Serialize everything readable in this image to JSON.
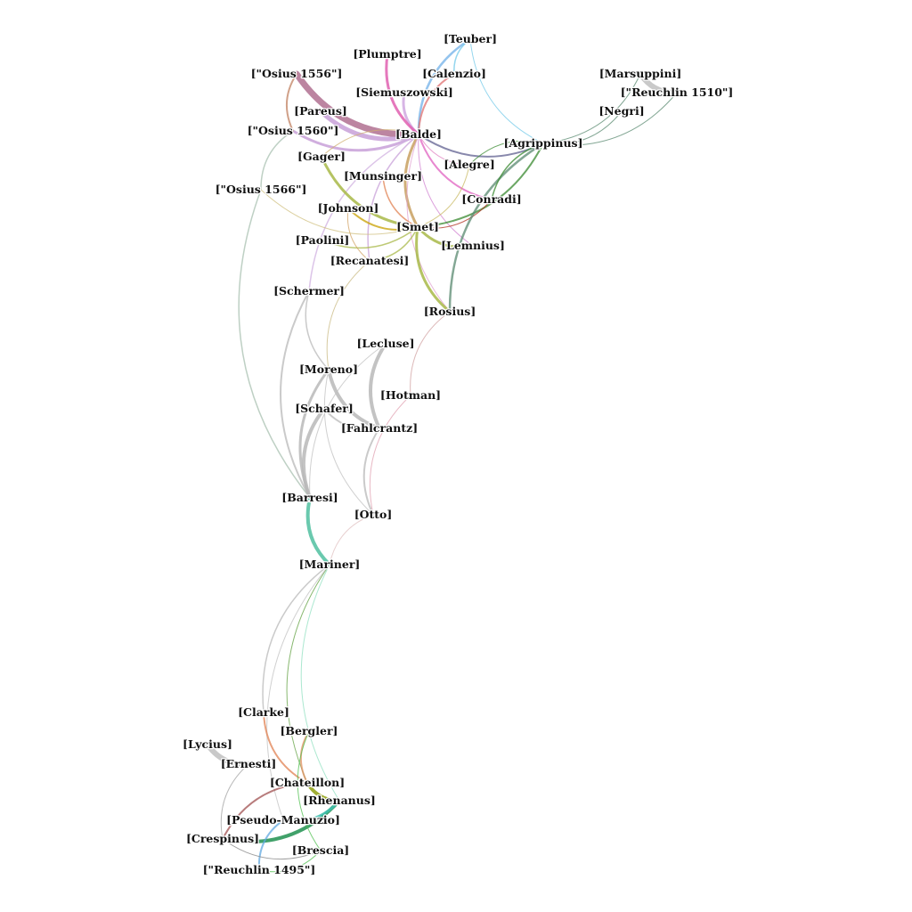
{
  "graph": {
    "nodes": [
      {
        "id": "teuber",
        "label": "[Teuber]"
      },
      {
        "id": "plumptre",
        "label": "[Plumptre]"
      },
      {
        "id": "calenzio",
        "label": "[Calenzio]"
      },
      {
        "id": "osius1556",
        "label": "[\"Osius 1556\"]"
      },
      {
        "id": "siemuszowski",
        "label": "[Siemuszowski]"
      },
      {
        "id": "marsuppini",
        "label": "[Marsuppini]"
      },
      {
        "id": "reuchlin1510",
        "label": "[\"Reuchlin 1510\"]"
      },
      {
        "id": "pareus",
        "label": "[Pareus]"
      },
      {
        "id": "negri",
        "label": "[Negri]"
      },
      {
        "id": "osius1560",
        "label": "[\"Osius 1560\"]"
      },
      {
        "id": "balde",
        "label": "[Balde]"
      },
      {
        "id": "agrippinus",
        "label": "[Agrippinus]"
      },
      {
        "id": "gager",
        "label": "[Gager]"
      },
      {
        "id": "alegre",
        "label": "[Alegre]"
      },
      {
        "id": "munsinger",
        "label": "[Munsinger]"
      },
      {
        "id": "osius1566",
        "label": "[\"Osius 1566\"]"
      },
      {
        "id": "conradi",
        "label": "[Conradi]"
      },
      {
        "id": "johnson",
        "label": "[Johnson]"
      },
      {
        "id": "smet",
        "label": "[Smet]"
      },
      {
        "id": "paolini",
        "label": "[Paolini]"
      },
      {
        "id": "lemnius",
        "label": "[Lemnius]"
      },
      {
        "id": "recanatesi",
        "label": "[Recanatesi]"
      },
      {
        "id": "schermer",
        "label": "[Schermer]"
      },
      {
        "id": "rosius",
        "label": "[Rosius]"
      },
      {
        "id": "lecluse",
        "label": "[Lecluse]"
      },
      {
        "id": "moreno",
        "label": "[Moreno]"
      },
      {
        "id": "hotman",
        "label": "[Hotman]"
      },
      {
        "id": "schafer",
        "label": "[Schafer]"
      },
      {
        "id": "fahlcrantz",
        "label": "[Fahlcrantz]"
      },
      {
        "id": "barresi",
        "label": "[Barresi]"
      },
      {
        "id": "otto",
        "label": "[Otto]"
      },
      {
        "id": "mariner",
        "label": "[Mariner]"
      },
      {
        "id": "clarke",
        "label": "[Clarke]"
      },
      {
        "id": "bergler",
        "label": "[Bergler]"
      },
      {
        "id": "lycius",
        "label": "[Lycius]"
      },
      {
        "id": "ernesti",
        "label": "[Ernesti]"
      },
      {
        "id": "chateillon",
        "label": "[Chateillon]"
      },
      {
        "id": "rhenanus",
        "label": "[Rhenanus]"
      },
      {
        "id": "pseudomanuzio",
        "label": "[Pseudo-Manuzio]"
      },
      {
        "id": "crespinus",
        "label": "[Crespinus]"
      },
      {
        "id": "brescia",
        "label": "[Brescia]"
      },
      {
        "id": "reuchlin1495",
        "label": "[\"Reuchlin 1495\"]"
      }
    ],
    "edges": [
      {
        "s": "osius1556",
        "t": "balde",
        "color": "#b07090",
        "w": 7
      },
      {
        "s": "pareus",
        "t": "balde",
        "color": "#c8a0d8",
        "w": 5
      },
      {
        "s": "osius1560",
        "t": "balde",
        "color": "#c8a0d8",
        "w": 3
      },
      {
        "s": "siemuszowski",
        "t": "balde",
        "color": "#d0a8e0",
        "w": 3
      },
      {
        "s": "plumptre",
        "t": "balde",
        "color": "#e060b0",
        "w": 3
      },
      {
        "s": "teuber",
        "t": "balde",
        "color": "#70b0e8",
        "w": 2.5
      },
      {
        "s": "teuber",
        "t": "calenzio",
        "color": "#70c8e8",
        "w": 1.5
      },
      {
        "s": "teuber",
        "t": "agrippinus",
        "color": "#70c8e8",
        "w": 1
      },
      {
        "s": "calenzio",
        "t": "balde",
        "color": "#e07070",
        "w": 2
      },
      {
        "s": "balde",
        "t": "smet",
        "color": "#c8a060",
        "w": 3
      },
      {
        "s": "balde",
        "t": "agrippinus",
        "color": "#606090",
        "w": 2
      },
      {
        "s": "balde",
        "t": "conradi",
        "color": "#e060c0",
        "w": 2
      },
      {
        "s": "balde",
        "t": "alegre",
        "color": "#e080c0",
        "w": 1
      },
      {
        "s": "balde",
        "t": "lemnius",
        "color": "#d080d0",
        "w": 1
      },
      {
        "s": "balde",
        "t": "recanatesi",
        "color": "#c8a0d8",
        "w": 1.5
      },
      {
        "s": "balde",
        "t": "gager",
        "color": "#d0b070",
        "w": 1
      },
      {
        "s": "balde",
        "t": "schermer",
        "color": "#d0b0e0",
        "w": 1.5
      },
      {
        "s": "balde",
        "t": "rosius",
        "color": "#e0a0d0",
        "w": 1
      },
      {
        "s": "gager",
        "t": "smet",
        "color": "#a8b848",
        "w": 3
      },
      {
        "s": "smet",
        "t": "lemnius",
        "color": "#a8b848",
        "w": 3
      },
      {
        "s": "smet",
        "t": "rosius",
        "color": "#a8b848",
        "w": 3
      },
      {
        "s": "smet",
        "t": "agrippinus",
        "color": "#3a8a30",
        "w": 2
      },
      {
        "s": "johnson",
        "t": "smet",
        "color": "#c8a000",
        "w": 2
      },
      {
        "s": "munsinger",
        "t": "smet",
        "color": "#e08050",
        "w": 1.5
      },
      {
        "s": "paolini",
        "t": "smet",
        "color": "#a8b848",
        "w": 1.5
      },
      {
        "s": "recanatesi",
        "t": "smet",
        "color": "#a8b848",
        "w": 1.5
      },
      {
        "s": "smet",
        "t": "conradi",
        "color": "#b03020",
        "w": 1
      },
      {
        "s": "smet",
        "t": "alegre",
        "color": "#c8b860",
        "w": 1
      },
      {
        "s": "agrippinus",
        "t": "rosius",
        "color": "#5a8a70",
        "w": 2.5
      },
      {
        "s": "agrippinus",
        "t": "marsuppini",
        "color": "#5a8a70",
        "w": 1
      },
      {
        "s": "agrippinus",
        "t": "reuchlin1510",
        "color": "#5a8a70",
        "w": 1
      },
      {
        "s": "agrippinus",
        "t": "negri",
        "color": "#5a8a70",
        "w": 1
      },
      {
        "s": "marsuppini",
        "t": "reuchlin1510",
        "color": "#c0c0c0",
        "w": 6
      },
      {
        "s": "agrippinus",
        "t": "alegre",
        "color": "#3a8a30",
        "w": 1
      },
      {
        "s": "agrippinus",
        "t": "conradi",
        "color": "#3a8a30",
        "w": 1.5
      },
      {
        "s": "osius1556",
        "t": "osius1560",
        "color": "#c08060",
        "w": 2
      },
      {
        "s": "osius1566",
        "t": "barresi",
        "color": "#a8c0b0",
        "w": 1.5
      },
      {
        "s": "osius1560",
        "t": "osius1566",
        "color": "#a8c0b0",
        "w": 1.5
      },
      {
        "s": "lecluse",
        "t": "fahlcrantz",
        "color": "#b8b8b8",
        "w": 4
      },
      {
        "s": "moreno",
        "t": "fahlcrantz",
        "color": "#b8b8b8",
        "w": 4
      },
      {
        "s": "schafer",
        "t": "barresi",
        "color": "#b8b8b8",
        "w": 4
      },
      {
        "s": "moreno",
        "t": "barresi",
        "color": "#b8b8b8",
        "w": 3
      },
      {
        "s": "schermer",
        "t": "moreno",
        "color": "#b8b8b8",
        "w": 1.5
      },
      {
        "s": "fahlcrantz",
        "t": "otto",
        "color": "#b8b8b8",
        "w": 2
      },
      {
        "s": "schafer",
        "t": "fahlcrantz",
        "color": "#b8b8b8",
        "w": 2
      },
      {
        "s": "hotman",
        "t": "otto",
        "color": "#e0a0b0",
        "w": 1
      },
      {
        "s": "rosius",
        "t": "hotman",
        "color": "#d0a0a0",
        "w": 1
      },
      {
        "s": "barresi",
        "t": "mariner",
        "color": "#50c0a0",
        "w": 4
      },
      {
        "s": "schermer",
        "t": "barresi",
        "color": "#b8b8b8",
        "w": 2
      },
      {
        "s": "recanatesi",
        "t": "moreno",
        "color": "#c8b880",
        "w": 1
      },
      {
        "s": "lecluse",
        "t": "barresi",
        "color": "#c0c0c0",
        "w": 1
      },
      {
        "s": "mariner",
        "t": "clarke",
        "color": "#b8b8b8",
        "w": 1.5
      },
      {
        "s": "mariner",
        "t": "chateillon",
        "color": "#60a040",
        "w": 1
      },
      {
        "s": "mariner",
        "t": "rhenanus",
        "color": "#90e0c0",
        "w": 1
      },
      {
        "s": "mariner",
        "t": "pseudomanuzio",
        "color": "#c0c0c0",
        "w": 1
      },
      {
        "s": "lycius",
        "t": "ernesti",
        "color": "#c0c0c0",
        "w": 6
      },
      {
        "s": "clarke",
        "t": "chateillon",
        "color": "#e08050",
        "w": 2
      },
      {
        "s": "bergler",
        "t": "chateillon",
        "color": "#e09060",
        "w": 2
      },
      {
        "s": "chateillon",
        "t": "rhenanus",
        "color": "#90a010",
        "w": 4
      },
      {
        "s": "crespinus",
        "t": "rhenanus",
        "color": "#209050",
        "w": 4
      },
      {
        "s": "pseudomanuzio",
        "t": "rhenanus",
        "color": "#40c0b0",
        "w": 3
      },
      {
        "s": "pseudomanuzio",
        "t": "reuchlin1495",
        "color": "#60a8e0",
        "w": 2
      },
      {
        "s": "crespinus",
        "t": "brescia",
        "color": "#808080",
        "w": 1
      },
      {
        "s": "ernesti",
        "t": "crespinus",
        "color": "#a0a0a0",
        "w": 1
      },
      {
        "s": "bergler",
        "t": "brescia",
        "color": "#50c050",
        "w": 1
      },
      {
        "s": "chateillon",
        "t": "crespinus",
        "color": "#a05050",
        "w": 2
      },
      {
        "s": "reuchlin1495",
        "t": "brescia",
        "color": "#50c050",
        "w": 1
      },
      {
        "s": "otto",
        "t": "mariner",
        "color": "#e0c0c0",
        "w": 1
      },
      {
        "s": "moreno",
        "t": "otto",
        "color": "#c0c0c0",
        "w": 1
      },
      {
        "s": "johnson",
        "t": "recanatesi",
        "color": "#d0a060",
        "w": 1
      },
      {
        "s": "osius1566",
        "t": "smet",
        "color": "#d0c080",
        "w": 1
      }
    ]
  }
}
